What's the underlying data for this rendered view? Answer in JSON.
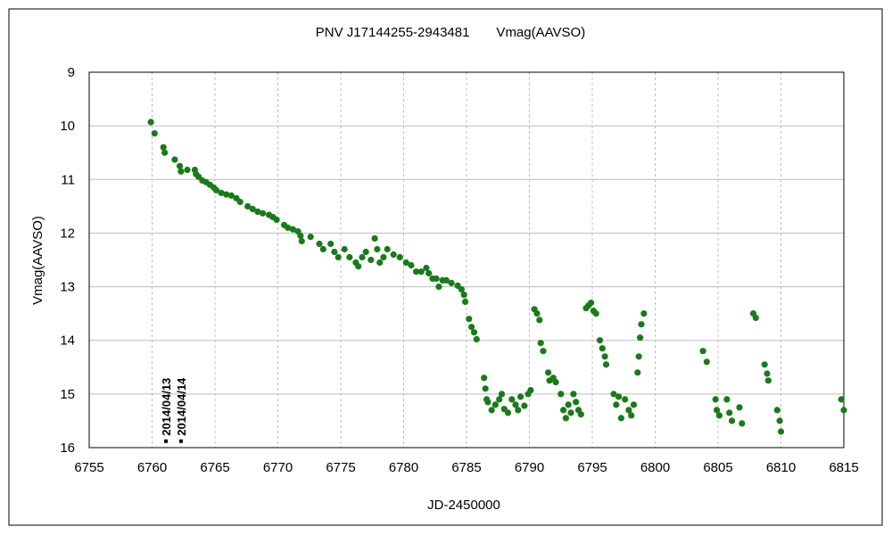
{
  "chart_data": {
    "type": "scatter",
    "title": "PNV J17144255-2943481　　Vmag(AAVSO)",
    "xlabel": "JD-2450000",
    "ylabel": "Vmag(AAVSO)",
    "xlim": [
      6755,
      6815
    ],
    "ylim": [
      9,
      16
    ],
    "y_inverted": true,
    "x_ticks": [
      6755,
      6760,
      6765,
      6770,
      6775,
      6780,
      6785,
      6790,
      6795,
      6800,
      6805,
      6810,
      6815
    ],
    "y_ticks": [
      9,
      10,
      11,
      12,
      13,
      14,
      15,
      16
    ],
    "grid": {
      "x": "dashed",
      "y": "solid"
    },
    "legend": "none",
    "colors": {
      "points": "#1a7a1a",
      "markers": "#000000",
      "grid": "#bdbdbd",
      "frame": "#000000"
    },
    "series": [
      {
        "values": [
          [
            6759.9,
            9.93
          ],
          [
            6760.2,
            10.14
          ],
          [
            6760.9,
            10.4
          ],
          [
            6761.0,
            10.5
          ],
          [
            6761.8,
            10.63
          ],
          [
            6762.2,
            10.75
          ],
          [
            6762.3,
            10.85
          ],
          [
            6762.8,
            10.82
          ],
          [
            6763.4,
            10.82
          ],
          [
            6763.5,
            10.9
          ],
          [
            6763.7,
            10.95
          ],
          [
            6764.0,
            11.02
          ],
          [
            6764.3,
            11.05
          ],
          [
            6764.6,
            11.1
          ],
          [
            6764.9,
            11.15
          ],
          [
            6765.1,
            11.2
          ],
          [
            6765.5,
            11.25
          ],
          [
            6765.9,
            11.28
          ],
          [
            6766.3,
            11.3
          ],
          [
            6766.7,
            11.35
          ],
          [
            6767.0,
            11.42
          ],
          [
            6767.6,
            11.5
          ],
          [
            6768.0,
            11.55
          ],
          [
            6768.4,
            11.6
          ],
          [
            6768.8,
            11.63
          ],
          [
            6769.3,
            11.66
          ],
          [
            6769.6,
            11.7
          ],
          [
            6769.9,
            11.75
          ],
          [
            6770.5,
            11.85
          ],
          [
            6770.8,
            11.9
          ],
          [
            6771.2,
            11.93
          ],
          [
            6771.6,
            11.97
          ],
          [
            6771.8,
            12.05
          ],
          [
            6771.9,
            12.15
          ],
          [
            6772.6,
            12.07
          ],
          [
            6773.3,
            12.2
          ],
          [
            6773.6,
            12.3
          ],
          [
            6774.2,
            12.2
          ],
          [
            6774.5,
            12.35
          ],
          [
            6774.8,
            12.45
          ],
          [
            6775.3,
            12.3
          ],
          [
            6775.7,
            12.45
          ],
          [
            6776.2,
            12.55
          ],
          [
            6776.4,
            12.62
          ],
          [
            6776.7,
            12.45
          ],
          [
            6777.0,
            12.35
          ],
          [
            6777.4,
            12.5
          ],
          [
            6777.7,
            12.1
          ],
          [
            6777.9,
            12.3
          ],
          [
            6778.1,
            12.55
          ],
          [
            6778.4,
            12.45
          ],
          [
            6778.7,
            12.3
          ],
          [
            6779.2,
            12.4
          ],
          [
            6779.7,
            12.45
          ],
          [
            6780.2,
            12.55
          ],
          [
            6780.6,
            12.6
          ],
          [
            6781.0,
            12.72
          ],
          [
            6781.4,
            12.72
          ],
          [
            6781.8,
            12.65
          ],
          [
            6782.0,
            12.75
          ],
          [
            6782.3,
            12.85
          ],
          [
            6782.6,
            12.85
          ],
          [
            6782.8,
            13.0
          ],
          [
            6783.1,
            12.88
          ],
          [
            6783.4,
            12.88
          ],
          [
            6783.8,
            12.93
          ],
          [
            6784.3,
            12.98
          ],
          [
            6784.6,
            13.05
          ],
          [
            6784.8,
            13.15
          ],
          [
            6784.9,
            13.28
          ],
          [
            6785.2,
            13.6
          ],
          [
            6785.4,
            13.75
          ],
          [
            6785.6,
            13.85
          ],
          [
            6785.8,
            13.98
          ],
          [
            6786.4,
            14.7
          ],
          [
            6786.5,
            14.9
          ],
          [
            6786.6,
            15.1
          ],
          [
            6786.7,
            15.15
          ],
          [
            6787.0,
            15.3
          ],
          [
            6787.3,
            15.2
          ],
          [
            6787.6,
            15.1
          ],
          [
            6787.8,
            15.0
          ],
          [
            6788.0,
            15.28
          ],
          [
            6788.3,
            15.35
          ],
          [
            6788.6,
            15.1
          ],
          [
            6788.9,
            15.2
          ],
          [
            6789.1,
            15.3
          ],
          [
            6789.3,
            15.05
          ],
          [
            6789.6,
            15.22
          ],
          [
            6789.9,
            15.0
          ],
          [
            6790.1,
            14.93
          ],
          [
            6790.4,
            13.42
          ],
          [
            6790.6,
            13.5
          ],
          [
            6790.8,
            13.62
          ],
          [
            6790.9,
            14.05
          ],
          [
            6791.1,
            14.2
          ],
          [
            6791.5,
            14.6
          ],
          [
            6791.6,
            14.75
          ],
          [
            6791.9,
            14.7
          ],
          [
            6792.1,
            14.78
          ],
          [
            6792.5,
            15.0
          ],
          [
            6792.7,
            15.3
          ],
          [
            6792.9,
            15.45
          ],
          [
            6793.1,
            15.2
          ],
          [
            6793.3,
            15.35
          ],
          [
            6793.5,
            15.0
          ],
          [
            6793.7,
            15.15
          ],
          [
            6793.9,
            15.3
          ],
          [
            6794.1,
            15.38
          ],
          [
            6794.5,
            13.4
          ],
          [
            6794.7,
            13.35
          ],
          [
            6794.9,
            13.3
          ],
          [
            6795.1,
            13.45
          ],
          [
            6795.3,
            13.5
          ],
          [
            6795.6,
            14.0
          ],
          [
            6795.8,
            14.15
          ],
          [
            6796.0,
            14.3
          ],
          [
            6796.1,
            14.45
          ],
          [
            6796.7,
            15.0
          ],
          [
            6796.9,
            15.2
          ],
          [
            6797.1,
            15.05
          ],
          [
            6797.3,
            15.45
          ],
          [
            6797.6,
            15.1
          ],
          [
            6797.9,
            15.3
          ],
          [
            6798.1,
            15.4
          ],
          [
            6798.3,
            15.2
          ],
          [
            6798.6,
            14.6
          ],
          [
            6798.7,
            14.3
          ],
          [
            6798.8,
            13.95
          ],
          [
            6798.9,
            13.7
          ],
          [
            6799.1,
            13.5
          ],
          [
            6803.8,
            14.2
          ],
          [
            6804.1,
            14.4
          ],
          [
            6804.8,
            15.1
          ],
          [
            6804.9,
            15.3
          ],
          [
            6805.1,
            15.4
          ],
          [
            6805.7,
            15.1
          ],
          [
            6805.9,
            15.35
          ],
          [
            6806.1,
            15.5
          ],
          [
            6806.7,
            15.25
          ],
          [
            6806.9,
            15.55
          ],
          [
            6807.8,
            13.5
          ],
          [
            6808.0,
            13.58
          ],
          [
            6808.7,
            14.45
          ],
          [
            6808.9,
            14.62
          ],
          [
            6809.0,
            14.75
          ],
          [
            6809.7,
            15.3
          ],
          [
            6809.9,
            15.5
          ],
          [
            6810.0,
            15.7
          ],
          [
            6814.8,
            15.1
          ],
          [
            6815.0,
            15.3
          ]
        ]
      }
    ],
    "annotations": [
      {
        "x": 6761.1,
        "y": 15.88,
        "label": "2014/04/13"
      },
      {
        "x": 6762.3,
        "y": 15.88,
        "label": "2014/04/14"
      }
    ]
  }
}
